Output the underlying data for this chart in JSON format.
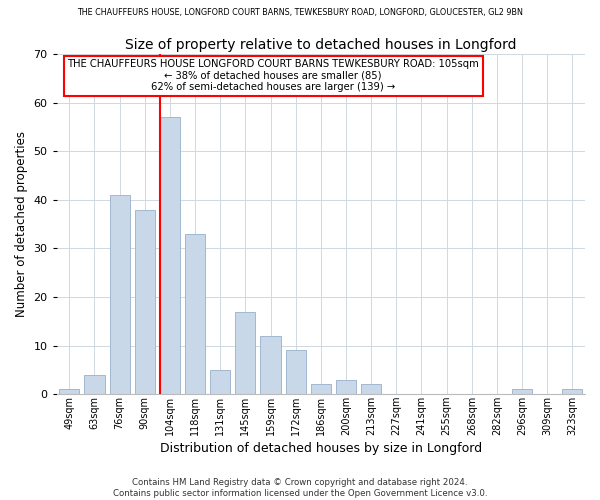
{
  "title_top": "THE CHAUFFEURS HOUSE, LONGFORD COURT BARNS, TEWKESBURY ROAD, LONGFORD, GLOUCESTER, GL2 9BN",
  "title_main": "Size of property relative to detached houses in Longford",
  "xlabel": "Distribution of detached houses by size in Longford",
  "ylabel": "Number of detached properties",
  "bar_labels": [
    "49sqm",
    "63sqm",
    "76sqm",
    "90sqm",
    "104sqm",
    "118sqm",
    "131sqm",
    "145sqm",
    "159sqm",
    "172sqm",
    "186sqm",
    "200sqm",
    "213sqm",
    "227sqm",
    "241sqm",
    "255sqm",
    "268sqm",
    "282sqm",
    "296sqm",
    "309sqm",
    "323sqm"
  ],
  "bar_values": [
    1,
    4,
    41,
    38,
    57,
    33,
    5,
    17,
    12,
    9,
    2,
    3,
    2,
    0,
    0,
    0,
    0,
    0,
    1,
    0,
    1
  ],
  "bar_color": "#c8d8e8",
  "bar_edge_color": "#a0b8d0",
  "vline_color": "red",
  "vline_x_index": 4,
  "ylim": [
    0,
    70
  ],
  "yticks": [
    0,
    10,
    20,
    30,
    40,
    50,
    60,
    70
  ],
  "annotation_line1": "THE CHAUFFEURS HOUSE LONGFORD COURT BARNS TEWKESBURY ROAD: 105sqm",
  "annotation_line2": "← 38% of detached houses are smaller (85)",
  "annotation_line3": "62% of semi-detached houses are larger (139) →",
  "footer_line1": "Contains HM Land Registry data © Crown copyright and database right 2024.",
  "footer_line2": "Contains public sector information licensed under the Open Government Licence v3.0.",
  "background_color": "#ffffff",
  "grid_color": "#d0d8e0"
}
